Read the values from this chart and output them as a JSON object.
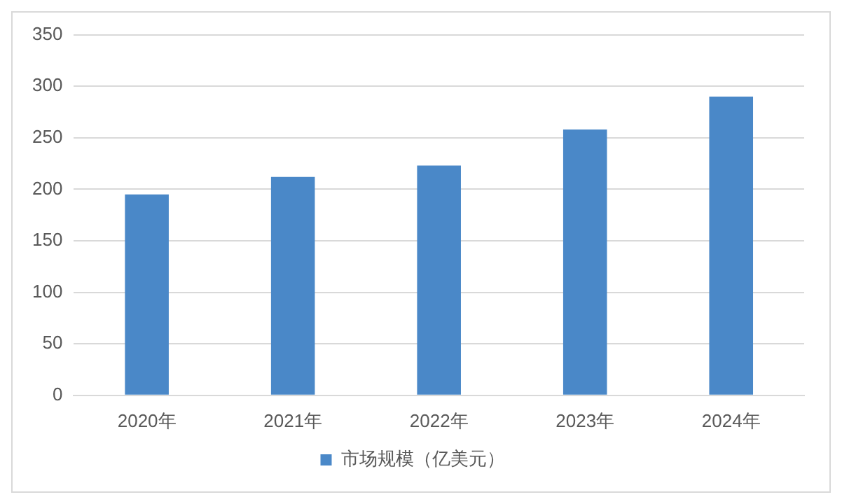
{
  "chart_data": {
    "type": "bar",
    "categories": [
      "2020年",
      "2021年",
      "2022年",
      "2023年",
      "2024年"
    ],
    "series": [
      {
        "name": "市场规模（亿美元）",
        "color": "#4a88c8",
        "values": [
          195,
          212,
          223,
          258,
          290
        ]
      }
    ],
    "ylim": [
      0,
      350
    ],
    "yticks": [
      0,
      50,
      100,
      150,
      200,
      250,
      300,
      350
    ],
    "grid": "y",
    "legend": "bottom"
  }
}
